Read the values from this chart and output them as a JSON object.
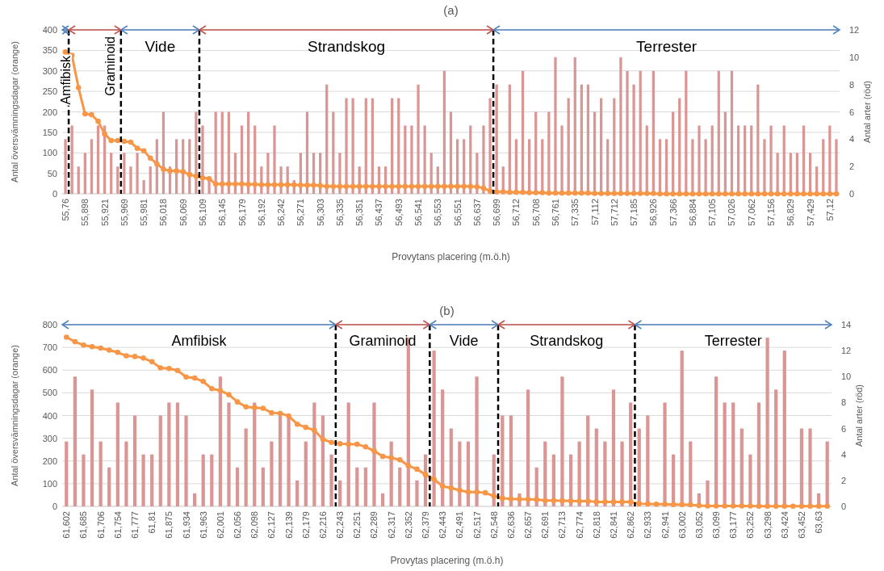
{
  "chart_data": [
    {
      "type": "bar",
      "title": "(a)",
      "xlabel": "Provytans placering (m.ö.h)",
      "ylabel": "Antal översvämningsdagar (orange)",
      "y2label": "Antal arter (röd)",
      "categories": [
        "55,76",
        null,
        null,
        "55,898",
        null,
        null,
        "55,921",
        null,
        null,
        "55,969",
        null,
        null,
        "55,981",
        null,
        null,
        "56,018",
        null,
        null,
        "56,069",
        null,
        null,
        "56,109",
        null,
        null,
        "56,145",
        null,
        null,
        "56,179",
        null,
        null,
        "56,192",
        null,
        null,
        "56,242",
        null,
        null,
        "56,271",
        null,
        null,
        "56,303",
        null,
        null,
        "56,335",
        null,
        null,
        "56,351",
        null,
        null,
        "56,437",
        null,
        null,
        "56,493",
        null,
        null,
        "56,541",
        null,
        null,
        "56,553",
        null,
        null,
        "56,551",
        null,
        null,
        "56,637",
        null,
        null,
        "56,699",
        null,
        null,
        "56,712",
        null,
        null,
        "56,708",
        null,
        null,
        "56,761",
        null,
        null,
        "57,335",
        null,
        null,
        "57,112",
        null,
        null,
        "57,712",
        null,
        null,
        "57,185",
        null,
        null,
        "56,926",
        null,
        null,
        "57,366",
        null,
        null,
        "56,884",
        null,
        null,
        "57,105",
        null,
        null,
        "57,026",
        null,
        null,
        "57,062",
        null,
        null,
        "57,156",
        null,
        null,
        "56,829",
        null,
        null,
        "57,429",
        null,
        null,
        "57,12",
        null
      ],
      "series": [
        {
          "axis": "y2",
          "color": "#d99694",
          "values": [
            4,
            5,
            2,
            3,
            4,
            5,
            5,
            3,
            2,
            3,
            2,
            3,
            1,
            2,
            4,
            6,
            2,
            4,
            4,
            4,
            6,
            5,
            1,
            6,
            6,
            6,
            3,
            5,
            6,
            5,
            2,
            3,
            5,
            2,
            2,
            1,
            3,
            6,
            3,
            3,
            8,
            6,
            3,
            7,
            7,
            2,
            7,
            7,
            2,
            2,
            7,
            7,
            5,
            5,
            8,
            5,
            3,
            2,
            9,
            6,
            4,
            4,
            5,
            3,
            5,
            7,
            8,
            2,
            8,
            4,
            9,
            4,
            6,
            4,
            6,
            10,
            5,
            7,
            10,
            8,
            8,
            6,
            7,
            4,
            7,
            10,
            9,
            8,
            9,
            5,
            9,
            4,
            4,
            6,
            7,
            9,
            4,
            5,
            4,
            5,
            9,
            6,
            9,
            5,
            5,
            5,
            8,
            4,
            5,
            3,
            5,
            3,
            3,
            5,
            3,
            2,
            4,
            5,
            4
          ]
        },
        {
          "type": "line",
          "color": "#f79646",
          "marker": "circle",
          "values": [
            346,
            338,
            259,
            195,
            193,
            177,
            146,
            130,
            130,
            128,
            126,
            111,
            105,
            87,
            73,
            60,
            56,
            56,
            54,
            47,
            43,
            39,
            37,
            24,
            24,
            24,
            24,
            24,
            23,
            23,
            22,
            22,
            22,
            22,
            22,
            22,
            21,
            21,
            21,
            20,
            18,
            18,
            18,
            18,
            18,
            18,
            18,
            18,
            18,
            18,
            18,
            18,
            18,
            18,
            18,
            18,
            18,
            18,
            18,
            18,
            18,
            18,
            18,
            17,
            14,
            7,
            5,
            5,
            4,
            4,
            4,
            3,
            3,
            3,
            2,
            2,
            2,
            2,
            2,
            2,
            2,
            1,
            1,
            1,
            1,
            1,
            1,
            1,
            1,
            1,
            1,
            0,
            0,
            0,
            0,
            0,
            0,
            0,
            0,
            0,
            0,
            0,
            0,
            0,
            0,
            0,
            0,
            0,
            0,
            0,
            0,
            0,
            0,
            0,
            0,
            0,
            0,
            0,
            0
          ]
        }
      ],
      "ylim": [
        0,
        400
      ],
      "yticks": [
        0,
        50,
        100,
        150,
        200,
        250,
        300,
        350,
        400
      ],
      "y2lim": [
        0,
        12
      ],
      "y2ticks": [
        0,
        2,
        4,
        6,
        8,
        10,
        12
      ],
      "grid": "y",
      "annotations": [
        "Amfibisk",
        "Graminoid",
        "Vide",
        "Strandskog",
        "Terrester"
      ]
    },
    {
      "type": "bar",
      "title": "(b)",
      "xlabel": "Provytas placering (m.ö.h)",
      "ylabel": "Antal översvämningsdagar (orange)",
      "y2label": "Antal arter (röd)",
      "categories": [
        "61,602",
        null,
        "61,685",
        null,
        "61,706",
        null,
        "61,754",
        null,
        "61,777",
        null,
        "61,81",
        null,
        "61,875",
        null,
        "61,934",
        null,
        "61,963",
        null,
        "62,001",
        null,
        "62,056",
        null,
        "62,098",
        null,
        "62,127",
        null,
        "62,139",
        null,
        "62,179",
        null,
        "62,216",
        null,
        "62,243",
        null,
        "62,251",
        null,
        "62,289",
        null,
        "62,317",
        null,
        "62,352",
        null,
        "62,379",
        null,
        "62,443",
        null,
        "62,491",
        null,
        "62,517",
        null,
        "62,548",
        null,
        "62,636",
        null,
        "62,657",
        null,
        "62,691",
        null,
        "62,713",
        null,
        "62,774",
        null,
        "62,818",
        null,
        "62,841",
        null,
        "62,862",
        null,
        "62,933",
        null,
        "62,941",
        null,
        "63,002",
        null,
        "63,052",
        null,
        "63,099",
        null,
        "63,177",
        null,
        "63,252",
        null,
        "63,298",
        null,
        "63,424",
        null,
        "63,452",
        null,
        "63,63",
        null
      ],
      "series": [
        {
          "axis": "y2",
          "color": "#d99694",
          "values": [
            5,
            10,
            4,
            9,
            5,
            3,
            8,
            5,
            7,
            4,
            4,
            7,
            8,
            8,
            7,
            1,
            4,
            4,
            10,
            8,
            3,
            6,
            8,
            3,
            5,
            7,
            7,
            2,
            5,
            8,
            7,
            4,
            2,
            8,
            3,
            3,
            8,
            1,
            5,
            3,
            13,
            2,
            4,
            12,
            9,
            6,
            5,
            5,
            10,
            0,
            4,
            7,
            7,
            1,
            9,
            3,
            5,
            4,
            10,
            4,
            5,
            7,
            6,
            5,
            9,
            5,
            8,
            6,
            7,
            0,
            8,
            4,
            12,
            5,
            1,
            2,
            10,
            8,
            8,
            6,
            4,
            8,
            13,
            9,
            12,
            0,
            6,
            6,
            1,
            5
          ]
        },
        {
          "type": "line",
          "color": "#f79646",
          "marker": "circle",
          "values": [
            745,
            725,
            710,
            703,
            697,
            688,
            678,
            663,
            660,
            653,
            637,
            610,
            607,
            598,
            570,
            565,
            550,
            518,
            510,
            492,
            460,
            438,
            435,
            432,
            412,
            410,
            398,
            362,
            348,
            335,
            295,
            282,
            276,
            274,
            274,
            262,
            244,
            220,
            214,
            205,
            179,
            164,
            140,
            119,
            89,
            81,
            71,
            63,
            63,
            60,
            45,
            36,
            33,
            32,
            31,
            30,
            26,
            26,
            25,
            24,
            23,
            23,
            20,
            20,
            20,
            20,
            20,
            12,
            11,
            10,
            10,
            8,
            8,
            7,
            4,
            2,
            2,
            2,
            2,
            2,
            2,
            1,
            1,
            1,
            1,
            1,
            1,
            1,
            1,
            1
          ]
        }
      ],
      "ylim": [
        0,
        800
      ],
      "yticks": [
        0,
        100,
        200,
        300,
        400,
        500,
        600,
        700,
        800
      ],
      "y2lim": [
        0,
        14
      ],
      "y2ticks": [
        0,
        2,
        4,
        6,
        8,
        10,
        12,
        14
      ],
      "grid": "y",
      "annotations": [
        "Amfibisk",
        "Graminoid",
        "Vide",
        "Strandskog",
        "Terrester"
      ]
    }
  ]
}
